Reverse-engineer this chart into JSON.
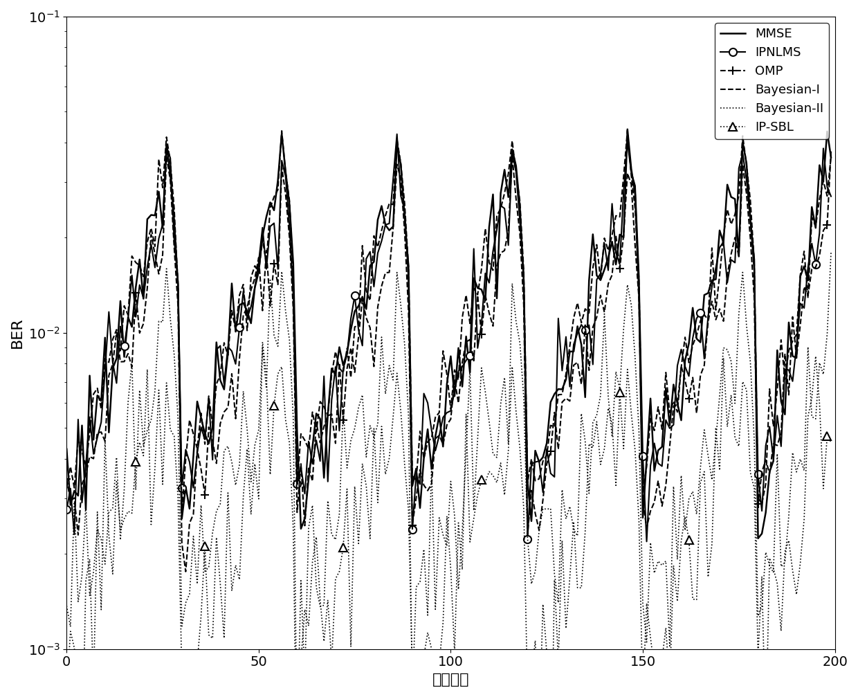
{
  "title": "",
  "xlabel": "子块索引",
  "ylabel": "BER",
  "xlim": [
    0,
    200
  ],
  "legend_entries": [
    "MMSE",
    "IPNLMS",
    "OMP",
    "Bayesian-I",
    "Bayesian-II",
    "IP-SBL"
  ],
  "line_colors": [
    "black",
    "black",
    "black",
    "black",
    "black",
    "black"
  ],
  "line_styles": [
    "-",
    "-",
    "--",
    "--",
    ":",
    ":"
  ],
  "line_widths": [
    1.8,
    1.5,
    1.5,
    1.5,
    1.2,
    1.2
  ],
  "markers": [
    "",
    "o",
    "+",
    "",
    "",
    "^"
  ],
  "marker_sizes": [
    0,
    8,
    8,
    0,
    0,
    8
  ],
  "marker_every": [
    1,
    15,
    18,
    1,
    1,
    18
  ],
  "background_color": "#ffffff",
  "legend_loc": "upper right",
  "tick_fontsize": 14,
  "label_fontsize": 16,
  "legend_fontsize": 13,
  "spike_positions": [
    30,
    60,
    90,
    120,
    150,
    180
  ]
}
